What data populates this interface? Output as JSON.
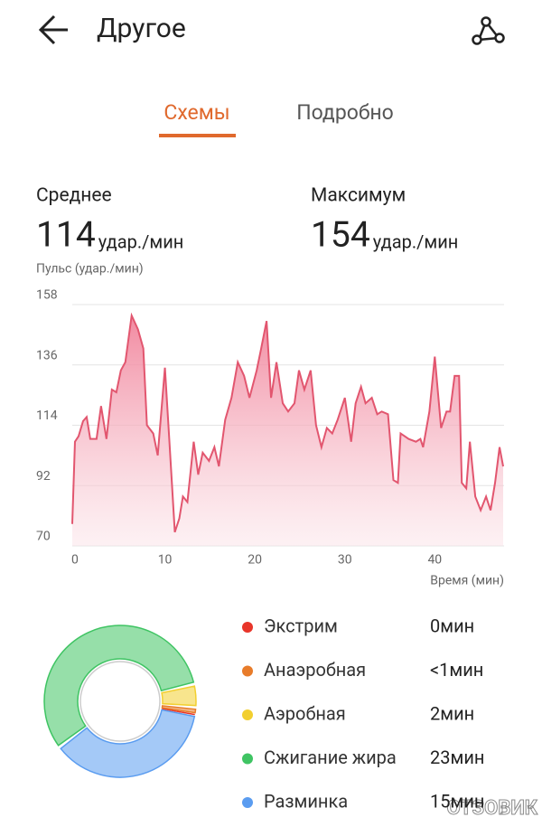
{
  "header": {
    "title": "Другое"
  },
  "tabs": [
    "Схемы",
    "Подробно"
  ],
  "stats": [
    {
      "label": "Среднее",
      "value": 114,
      "unit": "удар./мин"
    },
    {
      "label": "Максимум",
      "value": 154,
      "unit": "удар./мин"
    }
  ],
  "chart_data": {
    "type": "area",
    "y_label": "Пульс (удар./мин)",
    "x_label": "Время (мин)",
    "color": "#e2566f",
    "x": [
      -0.3,
      0,
      0.4,
      0.9,
      1.3,
      1.7,
      2.4,
      2.9,
      3.5,
      4.1,
      4.6,
      5.1,
      5.6,
      6.3,
      7.0,
      7.6,
      8.0,
      8.7,
      9.2,
      10.0,
      10.5,
      11.1,
      11.6,
      12.0,
      12.5,
      13.2,
      13.7,
      14.2,
      14.9,
      15.5,
      16.0,
      16.7,
      17.4,
      18.1,
      18.8,
      19.4,
      20.2,
      20.7,
      21.3,
      21.8,
      22.4,
      23.1,
      23.7,
      24.4,
      24.9,
      25.5,
      26.2,
      26.8,
      27.4,
      28.0,
      28.6,
      29.2,
      30.0,
      30.7,
      31.2,
      31.8,
      32.3,
      33.0,
      33.6,
      34.1,
      34.8,
      35.4,
      35.9,
      36.2,
      37.1,
      37.9,
      38.4,
      38.7,
      39.4,
      40.0,
      40.7,
      41.3,
      41.7,
      42.2,
      42.7,
      43.0,
      43.5,
      43.9,
      44.5,
      45.1,
      45.7,
      46.2,
      46.7,
      47.2,
      47.6
    ],
    "values": [
      78,
      108,
      110,
      115.5,
      117,
      109,
      109,
      121,
      109,
      127,
      126,
      134,
      137,
      154,
      149,
      142,
      114,
      111,
      103,
      135,
      108,
      75,
      80,
      88,
      86,
      108,
      96,
      104,
      101,
      106,
      99,
      116,
      124,
      137,
      132,
      124,
      134,
      142,
      152,
      124,
      137,
      122,
      119,
      122,
      134,
      127,
      134,
      114,
      106,
      113,
      111,
      116,
      124,
      108,
      122,
      128,
      122,
      124,
      118,
      119,
      118,
      94,
      93,
      111,
      109,
      108,
      109,
      106,
      119,
      139,
      113,
      119,
      119,
      132,
      132,
      93,
      91,
      108,
      88,
      83,
      88,
      83,
      93,
      106,
      99
    ],
    "xlim": [
      -0.3,
      47.7
    ],
    "xticks": [
      0,
      10,
      20,
      30,
      40
    ],
    "ylim": [
      70,
      158
    ],
    "yticks": [
      70,
      92,
      114,
      136,
      158
    ],
    "grid": true
  },
  "zones": [
    {
      "name": "Экстрим",
      "color": "#e8352a",
      "value": 0,
      "value_label": "0мин"
    },
    {
      "name": "Анаэробная",
      "color": "#e87c2a",
      "value": 0.6,
      "value_label": "<1мин"
    },
    {
      "name": "Аэробная",
      "color": "#f2cf30",
      "value": 2,
      "value_label": "2мин"
    },
    {
      "name": "Сжигание жира",
      "color": "#3fc463",
      "value": 23,
      "value_label": "23мин"
    },
    {
      "name": "Разминка",
      "color": "#5a9cf0",
      "value": 15,
      "value_label": "15мин"
    }
  ],
  "watermark": "ОТЗОВИК"
}
